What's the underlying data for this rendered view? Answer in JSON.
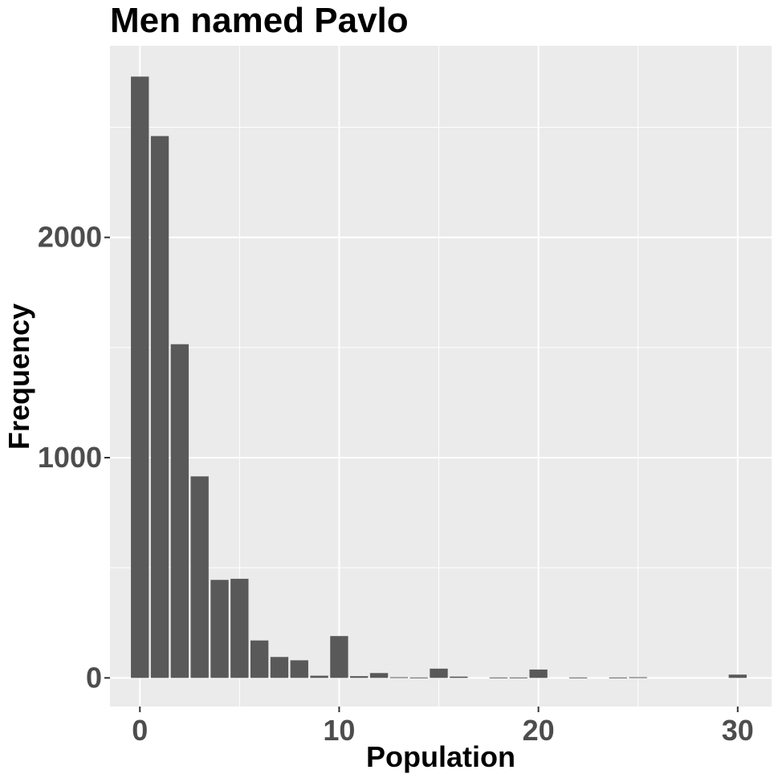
{
  "chart_data": {
    "type": "bar",
    "title": "Men named Pavlo",
    "xlabel": "Population",
    "ylabel": "Frequency",
    "x": [
      0,
      1,
      2,
      3,
      4,
      5,
      6,
      7,
      8,
      9,
      10,
      11,
      12,
      13,
      14,
      15,
      16,
      17,
      18,
      19,
      20,
      21,
      22,
      23,
      24,
      25,
      26,
      27,
      28,
      29,
      30
    ],
    "values": [
      2730,
      2460,
      1515,
      915,
      445,
      450,
      170,
      95,
      80,
      10,
      190,
      8,
      22,
      3,
      2,
      42,
      6,
      0,
      2,
      2,
      38,
      0,
      2,
      0,
      2,
      3,
      0,
      0,
      0,
      0,
      15
    ],
    "xlim": [
      -1.5,
      31.7
    ],
    "ylim": [
      -130,
      2870
    ],
    "x_ticks": [
      0,
      10,
      20,
      30
    ],
    "x_tick_labels": [
      "0",
      "10",
      "20",
      "30"
    ],
    "y_ticks": [
      0,
      1000,
      2000
    ],
    "y_tick_labels": [
      "0",
      "1000",
      "2000"
    ],
    "grid": true,
    "bar_color": "#595959",
    "panel_color": "#ebebeb",
    "grid_color": "#ffffff"
  }
}
